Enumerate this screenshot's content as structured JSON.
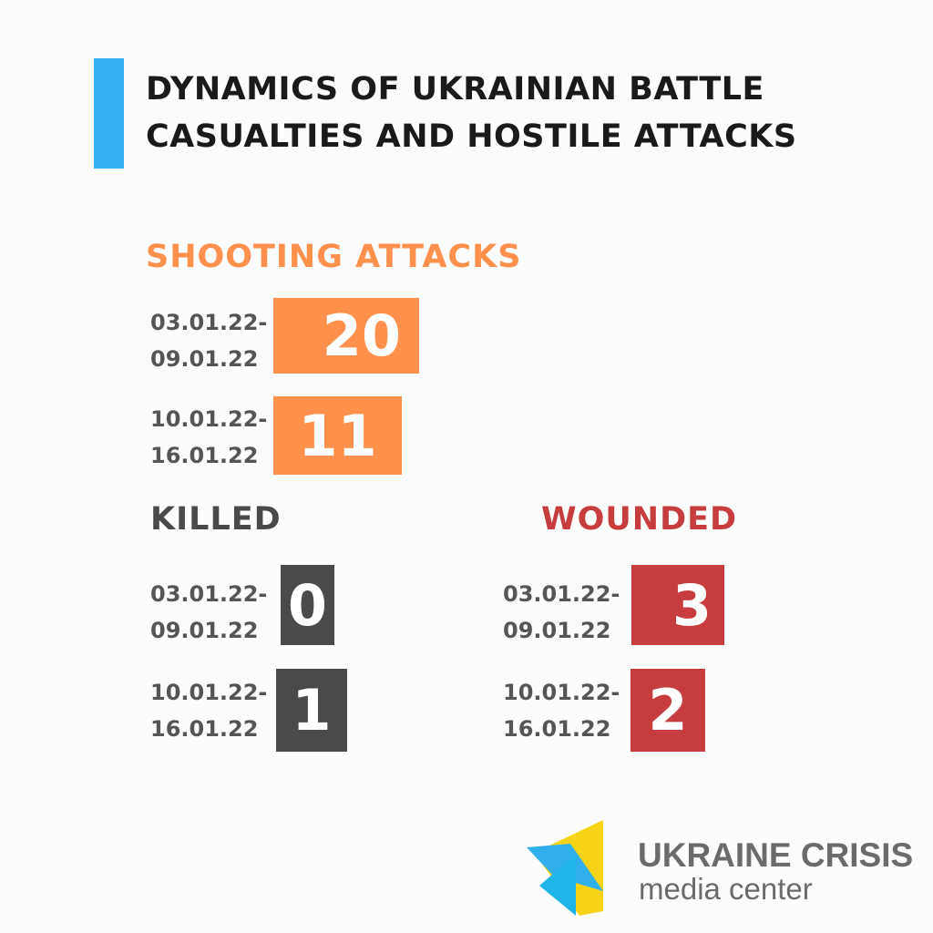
{
  "title": "DYNAMICS OF UKRAINIAN BATTLE CASUALTIES AND HOSTILE ATTACKS",
  "colors": {
    "accent": "#36b2f2",
    "shooting": "#ff914d",
    "killed": "#4a4a4a",
    "wounded": "#c73d3d"
  },
  "sections": {
    "shooting": {
      "heading": "SHOOTING  ATTACKS",
      "rows": [
        {
          "date_start": "03.01.22-",
          "date_end": "09.01.22",
          "value": "20"
        },
        {
          "date_start": "10.01.22-",
          "date_end": "16.01.22",
          "value": "11"
        }
      ]
    },
    "killed": {
      "heading": "KILLED",
      "rows": [
        {
          "date_start": "03.01.22-",
          "date_end": "09.01.22",
          "value": "0"
        },
        {
          "date_start": "10.01.22-",
          "date_end": "16.01.22",
          "value": "1"
        }
      ]
    },
    "wounded": {
      "heading": "WOUNDED",
      "rows": [
        {
          "date_start": "03.01.22-",
          "date_end": "09.01.22",
          "value": "3"
        },
        {
          "date_start": "10.01.22-",
          "date_end": "16.01.22",
          "value": "2"
        }
      ]
    }
  },
  "logo": {
    "line1": "UKRAINE CRISIS",
    "line2": "media center",
    "icon": "ukraine-crisis-triangle-logo"
  },
  "chart_data": {
    "type": "table",
    "title": "DYNAMICS OF UKRAINIAN BATTLE CASUALTIES AND HOSTILE ATTACKS",
    "categories": [
      "03.01.22-09.01.22",
      "10.01.22-16.01.22"
    ],
    "series": [
      {
        "name": "SHOOTING  ATTACKS",
        "values": [
          20,
          11
        ]
      },
      {
        "name": "KILLED",
        "values": [
          0,
          1
        ]
      },
      {
        "name": "WOUNDED",
        "values": [
          3,
          2
        ]
      }
    ]
  }
}
